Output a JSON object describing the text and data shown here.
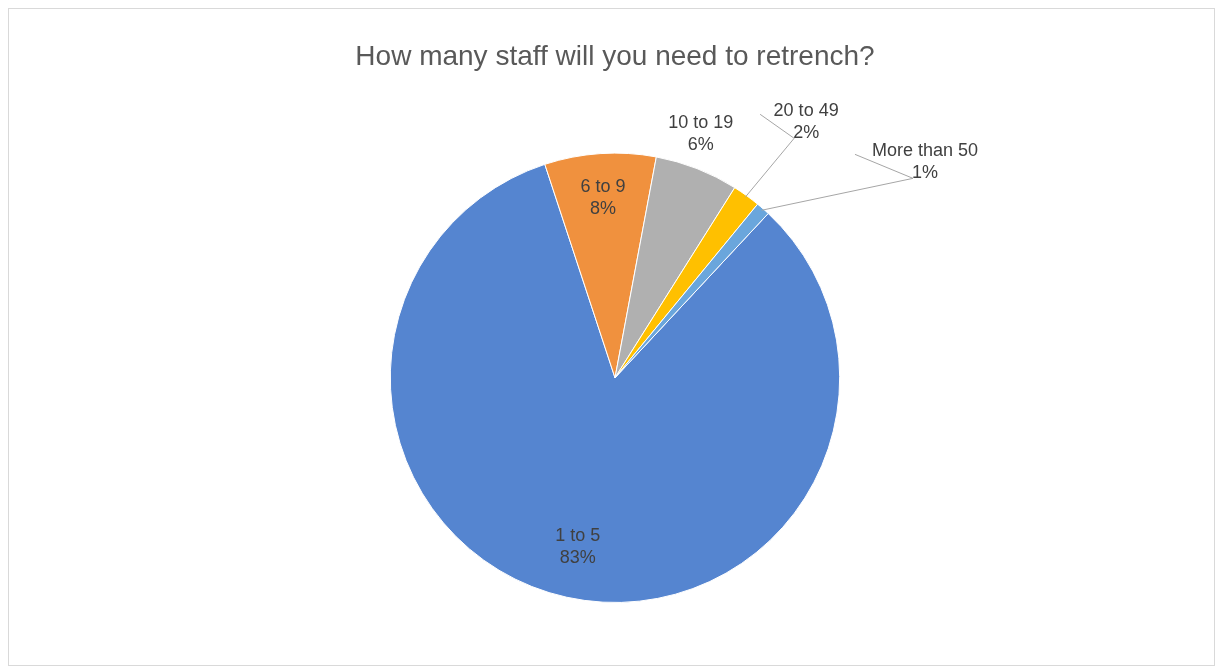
{
  "chart_data": {
    "type": "pie",
    "title": "How many staff will you need to retrench?",
    "categories": [
      "1 to 5",
      "6 to 9",
      "10 to 19",
      "20 to 49",
      "More than 50"
    ],
    "values": [
      83,
      8,
      6,
      2,
      1
    ],
    "value_labels": [
      "83%",
      "8%",
      "6%",
      "2%",
      "1%"
    ],
    "colors": [
      "#5585d0",
      "#f0913e",
      "#b0b0b0",
      "#ffc000",
      "#6aa6dc"
    ]
  }
}
